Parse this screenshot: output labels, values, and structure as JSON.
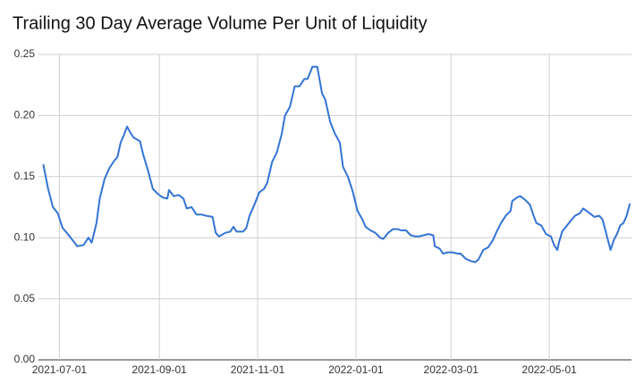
{
  "chart_data": {
    "type": "line",
    "title": "Trailing 30 Day Average Volume Per Unit of Liquidity",
    "color": "#3474d4",
    "grid": true,
    "xlim": [
      "2021-06-18",
      "2022-06-21"
    ],
    "xticks": [
      "2021-07-01",
      "2021-09-01",
      "2021-11-01",
      "2022-01-01",
      "2022-03-01",
      "2022-05-01"
    ],
    "ylim": [
      0,
      0.25
    ],
    "yticks": [
      {
        "value": 0,
        "label": "0.00"
      },
      0.05,
      {
        "value": 0.1,
        "label": "0.10"
      },
      0.15,
      {
        "value": 0.2,
        "label": "0.20"
      },
      0.25
    ],
    "x": [
      "2021-06-21",
      "2021-06-24",
      "2021-06-27",
      "2021-06-30",
      "2021-07-03",
      "2021-07-05",
      "2021-07-08",
      "2021-07-11",
      "2021-07-12",
      "2021-07-16",
      "2021-07-19",
      "2021-07-21",
      "2021-07-24",
      "2021-07-26",
      "2021-07-29",
      "2021-08-01",
      "2021-08-04",
      "2021-08-06",
      "2021-08-08",
      "2021-08-10",
      "2021-08-12",
      "2021-08-14",
      "2021-08-16",
      "2021-08-20",
      "2021-08-22",
      "2021-08-25",
      "2021-08-28",
      "2021-08-31",
      "2021-09-03",
      "2021-09-06",
      "2021-09-07",
      "2021-09-10",
      "2021-09-13",
      "2021-09-16",
      "2021-09-18",
      "2021-09-21",
      "2021-09-24",
      "2021-09-27",
      "2021-09-30",
      "2021-10-04",
      "2021-10-06",
      "2021-10-08",
      "2021-10-12",
      "2021-10-15",
      "2021-10-17",
      "2021-10-19",
      "2021-10-23",
      "2021-10-25",
      "2021-10-27",
      "2021-10-30",
      "2021-11-02",
      "2021-11-05",
      "2021-11-07",
      "2021-11-10",
      "2021-11-13",
      "2021-11-16",
      "2021-11-18",
      "2021-11-21",
      "2021-11-24",
      "2021-11-27",
      "2021-11-30",
      "2021-12-02",
      "2021-12-05",
      "2021-12-08",
      "2021-12-11",
      "2021-12-13",
      "2021-12-16",
      "2021-12-19",
      "2021-12-22",
      "2021-12-24",
      "2021-12-27",
      "2021-12-30",
      "2022-01-02",
      "2022-01-05",
      "2022-01-07",
      "2022-01-10",
      "2022-01-13",
      "2022-01-16",
      "2022-01-18",
      "2022-01-21",
      "2022-01-24",
      "2022-01-27",
      "2022-01-29",
      "2022-02-01",
      "2022-02-04",
      "2022-02-07",
      "2022-02-09",
      "2022-02-12",
      "2022-02-15",
      "2022-02-18",
      "2022-02-19",
      "2022-02-22",
      "2022-02-24",
      "2022-02-27",
      "2022-03-02",
      "2022-03-05",
      "2022-03-07",
      "2022-03-10",
      "2022-03-13",
      "2022-03-16",
      "2022-03-18",
      "2022-03-21",
      "2022-03-24",
      "2022-03-27",
      "2022-03-29",
      "2022-04-01",
      "2022-04-04",
      "2022-04-07",
      "2022-04-08",
      "2022-04-11",
      "2022-04-13",
      "2022-04-16",
      "2022-04-19",
      "2022-04-21",
      "2022-04-23",
      "2022-04-26",
      "2022-04-29",
      "2022-05-02",
      "2022-05-04",
      "2022-05-06",
      "2022-05-07",
      "2022-05-09",
      "2022-05-12",
      "2022-05-15",
      "2022-05-17",
      "2022-05-20",
      "2022-05-22",
      "2022-05-24",
      "2022-05-27",
      "2022-05-29",
      "2022-06-01",
      "2022-06-03",
      "2022-06-06",
      "2022-06-08",
      "2022-06-10",
      "2022-06-12",
      "2022-06-14",
      "2022-06-16",
      "2022-06-18",
      "2022-06-20"
    ],
    "values": [
      0.16,
      0.14,
      0.125,
      0.12,
      0.108,
      0.105,
      0.1,
      0.095,
      0.093,
      0.094,
      0.1,
      0.096,
      0.112,
      0.132,
      0.148,
      0.157,
      0.163,
      0.166,
      0.178,
      0.184,
      0.191,
      0.186,
      0.182,
      0.179,
      0.168,
      0.155,
      0.14,
      0.136,
      0.133,
      0.132,
      0.139,
      0.134,
      0.135,
      0.132,
      0.124,
      0.125,
      0.119,
      0.119,
      0.118,
      0.117,
      0.104,
      0.101,
      0.104,
      0.105,
      0.109,
      0.105,
      0.105,
      0.108,
      0.118,
      0.127,
      0.137,
      0.14,
      0.145,
      0.162,
      0.17,
      0.185,
      0.2,
      0.207,
      0.224,
      0.224,
      0.23,
      0.23,
      0.24,
      0.24,
      0.218,
      0.213,
      0.195,
      0.185,
      0.178,
      0.158,
      0.15,
      0.138,
      0.122,
      0.115,
      0.109,
      0.106,
      0.104,
      0.1,
      0.099,
      0.104,
      0.107,
      0.107,
      0.106,
      0.106,
      0.102,
      0.101,
      0.101,
      0.102,
      0.103,
      0.102,
      0.093,
      0.091,
      0.087,
      0.088,
      0.088,
      0.087,
      0.087,
      0.083,
      0.081,
      0.08,
      0.082,
      0.09,
      0.092,
      0.098,
      0.104,
      0.112,
      0.118,
      0.122,
      0.13,
      0.133,
      0.134,
      0.131,
      0.127,
      0.119,
      0.112,
      0.11,
      0.103,
      0.101,
      0.094,
      0.09,
      0.096,
      0.105,
      0.11,
      0.115,
      0.118,
      0.12,
      0.124,
      0.122,
      0.119,
      0.117,
      0.118,
      0.115,
      0.1,
      0.09,
      0.098,
      0.103,
      0.11,
      0.112,
      0.118,
      0.128
    ]
  }
}
